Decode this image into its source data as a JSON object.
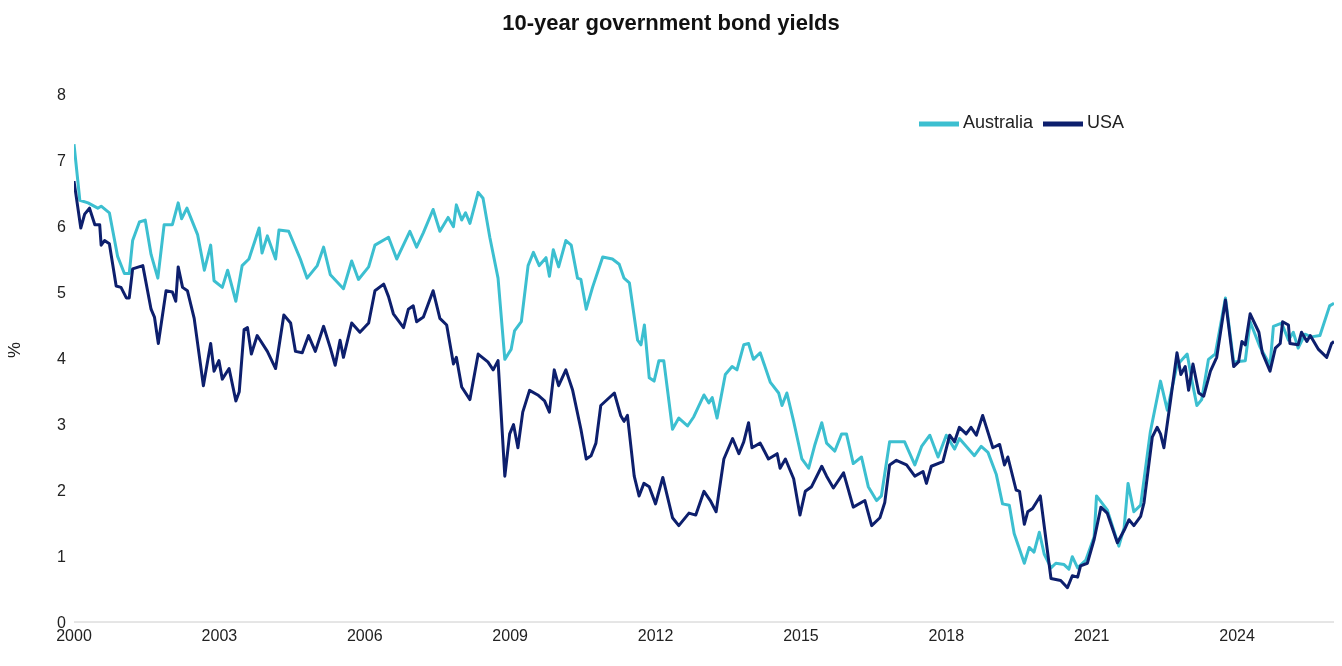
{
  "chart_data": {
    "type": "line",
    "title": "10-year government bond yields",
    "ylabel": "%",
    "xlim": [
      2000,
      2026
    ],
    "xticks": [
      2000,
      2003,
      2006,
      2009,
      2012,
      2015,
      2018,
      2021,
      2024
    ],
    "ylim": [
      0,
      8
    ],
    "yticks": [
      0,
      1,
      2,
      3,
      4,
      5,
      6,
      7,
      8
    ],
    "grid": false,
    "legend": "top right",
    "marker": "none",
    "line_style": "solid",
    "series": [
      {
        "name": "Australia",
        "color": "#3cbfd0",
        "x": [
          2000.0,
          2000.12,
          2000.29,
          2000.49,
          2000.56,
          2000.73,
          2000.9,
          2001.04,
          2001.14,
          2001.21,
          2001.35,
          2001.47,
          2001.59,
          2001.73,
          2001.86,
          2002.03,
          2002.15,
          2002.22,
          2002.33,
          2002.55,
          2002.69,
          2002.82,
          2002.89,
          2003.06,
          2003.17,
          2003.34,
          2003.47,
          2003.61,
          2003.82,
          2003.88,
          2003.99,
          2004.16,
          2004.23,
          2004.43,
          2004.67,
          2004.81,
          2005.02,
          2005.15,
          2005.29,
          2005.56,
          2005.73,
          2005.87,
          2006.08,
          2006.21,
          2006.49,
          2006.66,
          2006.93,
          2007.07,
          2007.21,
          2007.41,
          2007.55,
          2007.72,
          2007.83,
          2007.89,
          2008.0,
          2008.08,
          2008.17,
          2008.34,
          2008.44,
          2008.58,
          2008.75,
          2008.89,
          2009.02,
          2009.09,
          2009.23,
          2009.37,
          2009.48,
          2009.6,
          2009.74,
          2009.81,
          2009.89,
          2010.0,
          2010.15,
          2010.26,
          2010.39,
          2010.46,
          2010.57,
          2010.7,
          2010.91,
          2011.11,
          2011.25,
          2011.35,
          2011.46,
          2011.63,
          2011.7,
          2011.77,
          2011.87,
          2011.97,
          2012.07,
          2012.17,
          2012.35,
          2012.48,
          2012.66,
          2012.79,
          2013.0,
          2013.1,
          2013.17,
          2013.27,
          2013.44,
          2013.58,
          2013.68,
          2013.82,
          2013.92,
          2014.02,
          2014.16,
          2014.37,
          2014.54,
          2014.61,
          2014.71,
          2014.85,
          2015.02,
          2015.16,
          2015.29,
          2015.43,
          2015.53,
          2015.7,
          2015.84,
          2015.94,
          2016.08,
          2016.25,
          2016.39,
          2016.56,
          2016.66,
          2016.83,
          2016.97,
          2017.14,
          2017.35,
          2017.49,
          2017.66,
          2017.83,
          2018.0,
          2018.17,
          2018.27,
          2018.58,
          2018.72,
          2018.86,
          2019.03,
          2019.16,
          2019.3,
          2019.4,
          2019.61,
          2019.71,
          2019.81,
          2019.92,
          2020.02,
          2020.16,
          2020.26,
          2020.43,
          2020.53,
          2020.6,
          2020.71,
          2020.88,
          2021.05,
          2021.1,
          2021.32,
          2021.56,
          2021.67,
          2021.75,
          2021.87,
          2022.01,
          2022.21,
          2022.42,
          2022.56,
          2022.76,
          2022.97,
          2023.07,
          2023.17,
          2023.27,
          2023.41,
          2023.55,
          2023.76,
          2023.93,
          2024.17,
          2024.27,
          2024.47,
          2024.68,
          2024.75,
          2024.92,
          2025.06,
          2025.16,
          2025.26,
          2025.4,
          2025.53,
          2025.71,
          2025.91,
          2026.0
        ],
        "values": [
          7.24,
          6.39,
          6.35,
          6.27,
          6.3,
          6.2,
          5.54,
          5.28,
          5.28,
          5.78,
          6.06,
          6.09,
          5.57,
          5.21,
          6.02,
          6.02,
          6.35,
          6.11,
          6.27,
          5.87,
          5.33,
          5.71,
          5.17,
          5.07,
          5.33,
          4.86,
          5.4,
          5.5,
          5.97,
          5.59,
          5.85,
          5.5,
          5.94,
          5.92,
          5.5,
          5.21,
          5.4,
          5.68,
          5.26,
          5.05,
          5.47,
          5.19,
          5.38,
          5.71,
          5.83,
          5.5,
          5.92,
          5.68,
          5.9,
          6.25,
          5.92,
          6.13,
          5.99,
          6.32,
          6.09,
          6.2,
          6.04,
          6.51,
          6.42,
          5.83,
          5.21,
          3.98,
          4.13,
          4.41,
          4.55,
          5.4,
          5.6,
          5.4,
          5.52,
          5.24,
          5.64,
          5.38,
          5.78,
          5.71,
          5.21,
          5.19,
          4.74,
          5.07,
          5.53,
          5.5,
          5.42,
          5.21,
          5.14,
          4.27,
          4.2,
          4.5,
          3.7,
          3.65,
          3.96,
          3.96,
          2.92,
          3.09,
          2.97,
          3.11,
          3.44,
          3.32,
          3.4,
          3.09,
          3.75,
          3.87,
          3.82,
          4.2,
          4.22,
          3.98,
          4.08,
          3.63,
          3.47,
          3.28,
          3.47,
          3.04,
          2.47,
          2.33,
          2.69,
          3.02,
          2.71,
          2.59,
          2.85,
          2.85,
          2.4,
          2.5,
          2.05,
          1.84,
          1.91,
          2.73,
          2.73,
          2.73,
          2.38,
          2.66,
          2.83,
          2.5,
          2.83,
          2.62,
          2.78,
          2.52,
          2.66,
          2.57,
          2.24,
          1.79,
          1.77,
          1.34,
          0.89,
          1.13,
          1.06,
          1.36,
          1.03,
          0.82,
          0.89,
          0.87,
          0.8,
          0.99,
          0.82,
          0.94,
          1.29,
          1.91,
          1.7,
          1.15,
          1.43,
          2.1,
          1.67,
          1.77,
          2.88,
          3.65,
          3.21,
          3.89,
          4.06,
          3.65,
          3.28,
          3.37,
          3.98,
          4.06,
          4.91,
          3.94,
          3.96,
          4.55,
          4.17,
          3.89,
          4.48,
          4.53,
          4.27,
          4.39,
          4.15,
          4.36,
          4.32,
          4.34,
          4.79,
          4.83
        ]
      },
      {
        "name": "USA",
        "color": "#0d1f6d",
        "x": [
          2000.0,
          2000.14,
          2000.22,
          2000.32,
          2000.43,
          2000.53,
          2000.56,
          2000.63,
          2000.73,
          2000.87,
          2000.97,
          2001.08,
          2001.14,
          2001.21,
          2001.42,
          2001.59,
          2001.66,
          2001.74,
          2001.9,
          2002.03,
          2002.1,
          2002.15,
          2002.24,
          2002.34,
          2002.48,
          2002.67,
          2002.82,
          2002.89,
          2002.99,
          2003.06,
          2003.2,
          2003.34,
          2003.41,
          2003.51,
          2003.58,
          2003.66,
          2003.78,
          2003.99,
          2004.16,
          2004.33,
          2004.47,
          2004.57,
          2004.71,
          2004.84,
          2004.98,
          2005.15,
          2005.29,
          2005.39,
          2005.49,
          2005.56,
          2005.73,
          2005.9,
          2006.08,
          2006.21,
          2006.39,
          2006.49,
          2006.59,
          2006.8,
          2006.9,
          2007.0,
          2007.07,
          2007.21,
          2007.41,
          2007.55,
          2007.69,
          2007.83,
          2007.89,
          2008.0,
          2008.17,
          2008.34,
          2008.54,
          2008.65,
          2008.75,
          2008.89,
          2008.99,
          2009.07,
          2009.16,
          2009.26,
          2009.4,
          2009.57,
          2009.71,
          2009.81,
          2009.91,
          2010.0,
          2010.15,
          2010.29,
          2010.46,
          2010.57,
          2010.67,
          2010.77,
          2010.87,
          2011.15,
          2011.28,
          2011.35,
          2011.42,
          2011.56,
          2011.66,
          2011.76,
          2011.87,
          2012.0,
          2012.15,
          2012.35,
          2012.48,
          2012.69,
          2012.83,
          2013.0,
          2013.13,
          2013.25,
          2013.41,
          2013.59,
          2013.72,
          2013.82,
          2013.92,
          2013.99,
          2014.16,
          2014.33,
          2014.51,
          2014.57,
          2014.68,
          2014.85,
          2014.98,
          2015.09,
          2015.22,
          2015.43,
          2015.53,
          2015.67,
          2015.88,
          2016.08,
          2016.32,
          2016.46,
          2016.63,
          2016.73,
          2016.83,
          2016.97,
          2017.18,
          2017.35,
          2017.52,
          2017.59,
          2017.69,
          2017.93,
          2018.07,
          2018.17,
          2018.27,
          2018.41,
          2018.51,
          2018.62,
          2018.75,
          2018.96,
          2019.1,
          2019.2,
          2019.27,
          2019.44,
          2019.51,
          2019.61,
          2019.68,
          2019.78,
          2019.94,
          2020.16,
          2020.36,
          2020.5,
          2020.6,
          2020.71,
          2020.77,
          2020.91,
          2021.05,
          2021.19,
          2021.32,
          2021.53,
          2021.67,
          2021.77,
          2021.87,
          2022.01,
          2022.08,
          2022.25,
          2022.35,
          2022.42,
          2022.49,
          2022.63,
          2022.76,
          2022.84,
          2022.93,
          2023.0,
          2023.09,
          2023.21,
          2023.31,
          2023.45,
          2023.58,
          2023.76,
          2023.93,
          2024.03,
          2024.1,
          2024.17,
          2024.27,
          2024.45,
          2024.52,
          2024.68,
          2024.79,
          2024.89,
          2024.94,
          2025.06,
          2025.09,
          2025.26,
          2025.33,
          2025.44,
          2025.51,
          2025.68,
          2025.85,
          2025.95,
          2026.0
        ],
        "values": [
          6.68,
          5.97,
          6.18,
          6.27,
          6.02,
          6.02,
          5.71,
          5.78,
          5.73,
          5.09,
          5.07,
          4.91,
          4.91,
          5.35,
          5.4,
          4.74,
          4.62,
          4.22,
          5.02,
          5.0,
          4.86,
          5.38,
          5.07,
          5.02,
          4.6,
          3.58,
          4.22,
          3.8,
          3.96,
          3.68,
          3.84,
          3.35,
          3.49,
          4.43,
          4.46,
          4.06,
          4.34,
          4.1,
          3.84,
          4.65,
          4.53,
          4.1,
          4.08,
          4.34,
          4.1,
          4.48,
          4.15,
          3.89,
          4.27,
          4.01,
          4.53,
          4.39,
          4.53,
          5.02,
          5.12,
          4.93,
          4.67,
          4.46,
          4.74,
          4.79,
          4.55,
          4.62,
          5.02,
          4.6,
          4.5,
          3.91,
          4.01,
          3.56,
          3.37,
          4.06,
          3.94,
          3.82,
          3.96,
          2.21,
          2.85,
          2.99,
          2.64,
          3.18,
          3.51,
          3.44,
          3.35,
          3.18,
          3.82,
          3.58,
          3.82,
          3.51,
          2.92,
          2.47,
          2.52,
          2.71,
          3.28,
          3.47,
          3.13,
          3.04,
          3.13,
          2.21,
          1.91,
          2.1,
          2.05,
          1.79,
          2.19,
          1.58,
          1.46,
          1.65,
          1.62,
          1.98,
          1.84,
          1.67,
          2.47,
          2.78,
          2.55,
          2.73,
          3.02,
          2.64,
          2.71,
          2.47,
          2.55,
          2.33,
          2.47,
          2.17,
          1.62,
          1.98,
          2.05,
          2.36,
          2.21,
          2.03,
          2.26,
          1.74,
          1.84,
          1.46,
          1.58,
          1.81,
          2.38,
          2.45,
          2.38,
          2.21,
          2.28,
          2.1,
          2.36,
          2.43,
          2.83,
          2.73,
          2.95,
          2.85,
          2.95,
          2.83,
          3.13,
          2.64,
          2.69,
          2.38,
          2.5,
          2.0,
          1.98,
          1.48,
          1.67,
          1.72,
          1.91,
          0.66,
          0.63,
          0.52,
          0.7,
          0.68,
          0.85,
          0.89,
          1.25,
          1.74,
          1.65,
          1.2,
          1.39,
          1.55,
          1.46,
          1.6,
          1.81,
          2.8,
          2.95,
          2.85,
          2.64,
          3.37,
          4.08,
          3.75,
          3.87,
          3.51,
          3.91,
          3.47,
          3.42,
          3.8,
          4.01,
          4.88,
          3.87,
          3.94,
          4.25,
          4.2,
          4.67,
          4.39,
          4.08,
          3.8,
          4.15,
          4.22,
          4.55,
          4.5,
          4.22,
          4.2,
          4.39,
          4.25,
          4.34,
          4.13,
          4.01,
          4.22,
          4.25
        ]
      }
    ]
  }
}
